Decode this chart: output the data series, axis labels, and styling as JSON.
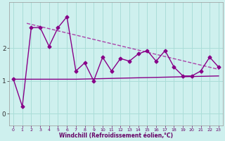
{
  "title": "",
  "xlabel": "Windchill (Refroidissement éolien,°C)",
  "bg_color": "#cef0ee",
  "grid_color": "#aaddd8",
  "line_color": "#880088",
  "trend_color": "#aa44aa",
  "flat_color": "#880088",
  "x_ticks": [
    0,
    1,
    2,
    3,
    4,
    5,
    6,
    7,
    8,
    9,
    10,
    11,
    12,
    13,
    14,
    15,
    16,
    17,
    18,
    19,
    20,
    21,
    22,
    23
  ],
  "x_tick_labels": [
    "0",
    "1",
    "2",
    "3",
    "4",
    "5",
    "6",
    "7",
    "8",
    "9",
    "10",
    "11",
    "12",
    "13",
    "14",
    "15",
    "16",
    "17",
    "18",
    "19",
    "20",
    "21",
    "22",
    "23"
  ],
  "y_ticks": [
    0,
    1,
    2
  ],
  "ylim": [
    -0.35,
    3.4
  ],
  "xlim": [
    -0.5,
    23.5
  ],
  "series1_x": [
    0,
    1,
    2,
    3,
    4,
    5,
    6,
    7,
    8,
    9,
    10,
    11,
    12,
    13,
    14,
    15,
    16,
    17,
    18,
    19,
    20,
    21,
    22,
    23
  ],
  "series1_y": [
    1.05,
    0.22,
    2.62,
    2.62,
    2.05,
    2.62,
    2.95,
    1.3,
    1.55,
    1.0,
    1.72,
    1.3,
    1.68,
    1.6,
    1.82,
    1.92,
    1.6,
    1.92,
    1.42,
    1.15,
    1.15,
    1.3,
    1.72,
    1.42
  ],
  "series2_x": [
    0,
    7,
    23
  ],
  "series2_y": [
    1.05,
    1.05,
    1.15
  ],
  "trend_x": [
    1.5,
    23
  ],
  "trend_y": [
    2.75,
    1.35
  ]
}
